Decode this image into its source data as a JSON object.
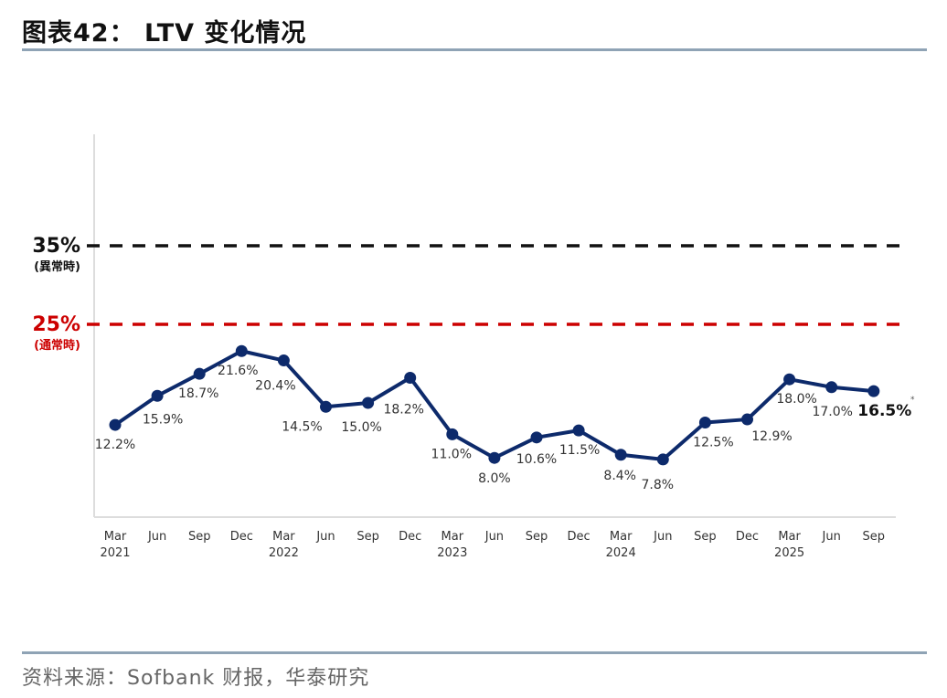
{
  "header": {
    "title": "图表42： LTV 变化情况"
  },
  "footer": {
    "source": "资料来源：Sofbank 财报，华泰研究"
  },
  "chart_data": {
    "type": "line",
    "title": "LTV 变化情况",
    "categories": [
      "Mar 2021",
      "Jun",
      "Sep",
      "Dec",
      "Mar 2022",
      "Jun",
      "Sep",
      "Dec",
      "Mar 2023",
      "Jun",
      "Sep",
      "Dec",
      "Mar 2024",
      "Jun",
      "Sep",
      "Dec",
      "Mar 2025",
      "Jun",
      "Sep"
    ],
    "tick_top": [
      "Mar",
      "Jun",
      "Sep",
      "Dec",
      "Mar",
      "Jun",
      "Sep",
      "Dec",
      "Mar",
      "Jun",
      "Sep",
      "Dec",
      "Mar",
      "Jun",
      "Sep",
      "Dec",
      "Mar",
      "Jun",
      "Sep"
    ],
    "tick_bottom": [
      "2021",
      "",
      "",
      "",
      "2022",
      "",
      "",
      "",
      "2023",
      "",
      "",
      "",
      "2024",
      "",
      "",
      "",
      "2025",
      "",
      ""
    ],
    "series": [
      {
        "name": "LTV",
        "values": [
          12.2,
          15.9,
          18.7,
          21.6,
          20.4,
          14.5,
          15.0,
          18.2,
          11.0,
          8.0,
          10.6,
          11.5,
          8.4,
          7.8,
          12.5,
          12.9,
          18.0,
          17.0,
          16.5
        ],
        "labels": [
          "12.2%",
          "15.9%",
          "18.7%",
          "21.6%",
          "20.4%",
          "14.5%",
          "15.0%",
          "18.2%",
          "11.0%",
          "8.0%",
          "10.6%",
          "11.5%",
          "8.4%",
          "7.8%",
          "12.5%",
          "12.9%",
          "18.0%",
          "17.0%",
          "16.5%"
        ],
        "color": "#0d2a6b"
      }
    ],
    "reference_lines": [
      {
        "value": 35,
        "label": "35%",
        "sublabel": "(異常時)",
        "color": "#111111"
      },
      {
        "value": 25,
        "label": "25%",
        "sublabel": "(通常時)",
        "color": "#cc0000"
      }
    ],
    "footnote_mark": "*",
    "ylim": [
      0,
      48
    ]
  }
}
